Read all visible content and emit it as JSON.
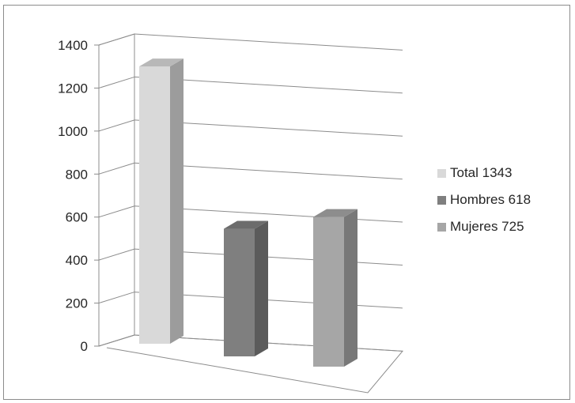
{
  "chart_data": {
    "type": "bar",
    "categories": [
      "Total 1343",
      "Hombres 618",
      "Mujeres 725"
    ],
    "values": [
      1343,
      618,
      725
    ],
    "title": "",
    "xlabel": "",
    "ylabel": "",
    "ylim": [
      0,
      1400
    ],
    "yticks": [
      "0",
      "200",
      "400",
      "600",
      "800",
      "1000",
      "1200",
      "1400"
    ],
    "grid": true,
    "legend": "right",
    "colors": [
      "#d9d9d9",
      "#7f7f7f",
      "#a6a6a6"
    ]
  }
}
